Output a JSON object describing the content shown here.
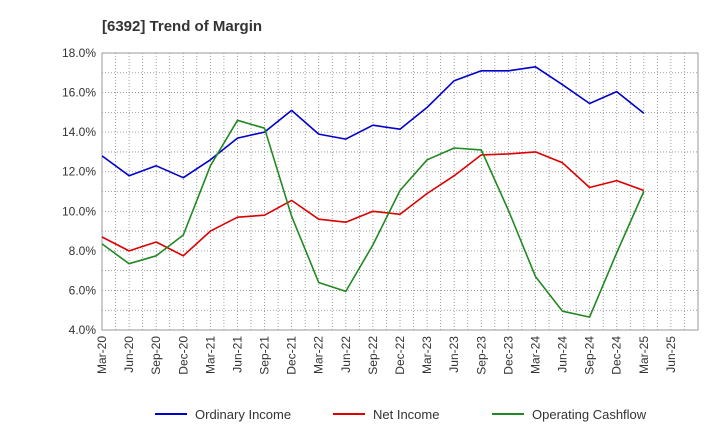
{
  "chart_data": {
    "type": "line",
    "title": "[6392]  Trend of Margin",
    "xlabel": "",
    "ylabel": "",
    "categories": [
      "Mar-20",
      "Jun-20",
      "Sep-20",
      "Dec-20",
      "Mar-21",
      "Jun-21",
      "Sep-21",
      "Dec-21",
      "Mar-22",
      "Jun-22",
      "Sep-22",
      "Dec-22",
      "Mar-23",
      "Jun-23",
      "Sep-23",
      "Dec-23",
      "Mar-24",
      "Jun-24",
      "Sep-24",
      "Dec-24",
      "Mar-25",
      "Jun-25"
    ],
    "ylim": [
      4.0,
      18.0
    ],
    "yticks": [
      4.0,
      6.0,
      8.0,
      10.0,
      12.0,
      14.0,
      16.0,
      18.0
    ],
    "ytick_suffix": "%",
    "grid": true,
    "legend_position": "bottom",
    "series": [
      {
        "name": "Ordinary Income",
        "color": "#0000cc",
        "values": [
          12.8,
          11.8,
          12.3,
          11.7,
          12.6,
          13.7,
          14.0,
          15.1,
          13.9,
          13.65,
          14.35,
          14.15,
          15.25,
          16.6,
          17.1,
          17.1,
          17.3,
          16.4,
          15.45,
          16.05,
          14.95,
          null
        ]
      },
      {
        "name": "Net Income",
        "color": "#dd0000",
        "values": [
          8.7,
          8.0,
          8.45,
          7.75,
          9.0,
          9.7,
          9.8,
          10.55,
          9.6,
          9.45,
          10.0,
          9.85,
          10.9,
          11.8,
          12.85,
          12.9,
          13.0,
          12.45,
          11.2,
          11.55,
          11.05,
          null
        ]
      },
      {
        "name": "Operating Cashflow",
        "color": "#228822",
        "values": [
          8.35,
          7.35,
          7.75,
          8.8,
          12.3,
          14.6,
          14.2,
          9.75,
          6.4,
          5.95,
          8.3,
          11.05,
          12.6,
          13.2,
          13.1,
          10.05,
          6.7,
          4.95,
          4.65,
          7.9,
          11.0,
          null
        ]
      }
    ]
  }
}
